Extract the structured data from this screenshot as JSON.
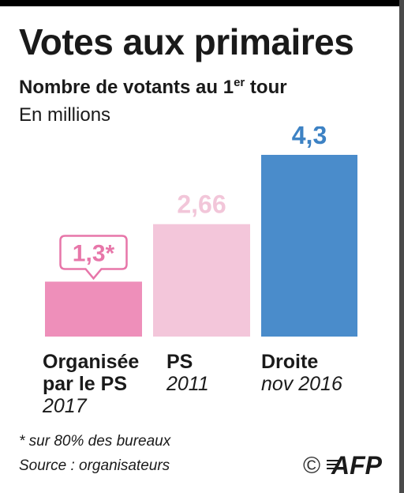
{
  "header": {
    "title": "Votes aux primaires",
    "subtitle_main": "Nombre de votants au 1",
    "subtitle_sup": "er",
    "subtitle_end": " tour",
    "unit": "En millions"
  },
  "colors": {
    "bar_ps_2017": "#ee8fba",
    "bar_ps_2011": "#f3c6da",
    "bar_droite": "#4a8ccb",
    "label_ps_2017": "#e776a9",
    "label_ps_2011": "#f2c6d9",
    "label_droite": "#3d82c4"
  },
  "chart_data": {
    "type": "bar",
    "categories": [
      "Organisée par le PS 2017",
      "PS 2011",
      "Droite nov 2016"
    ],
    "values": [
      1.3,
      2.66,
      4.3
    ],
    "value_labels": [
      "1,3*",
      "2,66",
      "4,3"
    ],
    "title": "Votes aux primaires",
    "subtitle": "Nombre de votants au 1er tour",
    "ylabel": "En millions",
    "ylim": [
      0,
      4.3
    ]
  },
  "categories_text": [
    {
      "line1": "Organisée",
      "line2": "par le PS",
      "year": "2017"
    },
    {
      "line1": "PS",
      "line2": "",
      "year": "2011"
    },
    {
      "line1": "Droite",
      "line2": "",
      "year": "nov 2016"
    }
  ],
  "footer": {
    "note": "* sur 80% des bureaux",
    "source": "Source : organisateurs",
    "copyright": "©",
    "logo_text": "AFP"
  }
}
